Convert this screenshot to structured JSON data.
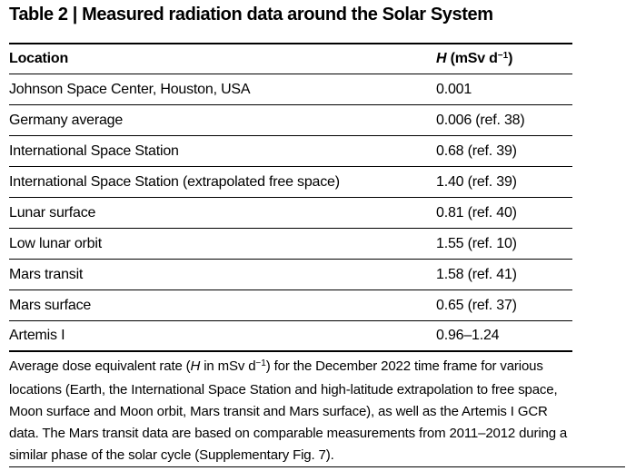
{
  "title": "Table 2 | Measured radiation data around the Solar System",
  "table": {
    "header": {
      "location_label": "Location",
      "value_symbol": "H",
      "value_unit_pre": " (mSv d",
      "value_unit_sup": "−1",
      "value_unit_post": ")"
    },
    "rows": [
      {
        "location": "Johnson Space Center, Houston, USA",
        "value": "0.001"
      },
      {
        "location": "Germany average",
        "value": "0.006 (ref. 38)"
      },
      {
        "location": "International Space Station",
        "value": "0.68 (ref. 39)"
      },
      {
        "location": "International Space Station (extrapolated free space)",
        "value": "1.40 (ref. 39)"
      },
      {
        "location": "Lunar surface",
        "value": "0.81 (ref. 40)"
      },
      {
        "location": "Low lunar orbit",
        "value": "1.55 (ref. 10)"
      },
      {
        "location": "Mars transit",
        "value": "1.58 (ref. 41)"
      },
      {
        "location": "Mars surface",
        "value": "0.65 (ref. 37)"
      },
      {
        "location": "Artemis I",
        "value": "0.96–1.24"
      }
    ]
  },
  "footnote": {
    "line1_pre": "Average dose equivalent rate (",
    "line1_symbol": "H",
    "line1_mid": " in mSv d",
    "line1_sup": "−1",
    "line1_post": ") for the December 2022 time frame for various",
    "line2": "locations (Earth, the International Space Station and high-latitude extrapolation to free space,",
    "line3": "Moon surface and Moon orbit, Mars transit and Mars surface), as well as the Artemis I GCR",
    "line4": "data. The Mars transit data are based on comparable measurements from 2011–2012 during a",
    "line5": "similar phase of the solar cycle (Supplementary Fig. 7)."
  },
  "colors": {
    "text": "#000000",
    "rule": "#000000",
    "background": "#ffffff"
  }
}
